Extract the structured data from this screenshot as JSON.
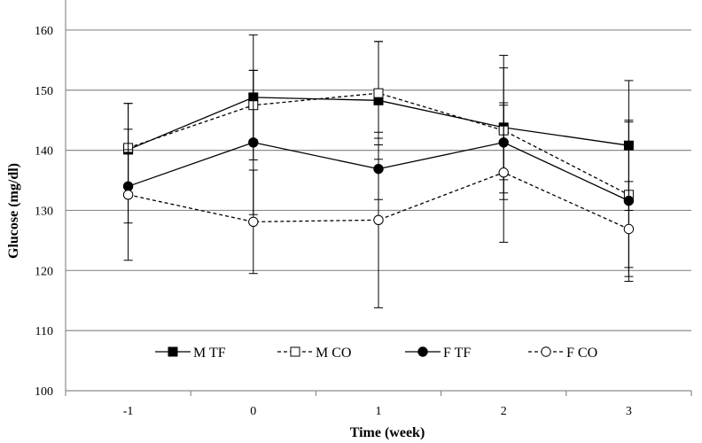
{
  "chart_data": {
    "type": "line",
    "title": "",
    "xlabel": "Time (week)",
    "ylabel": "Glucose (mg/dl)",
    "x": [
      -1,
      0,
      1,
      2,
      3
    ],
    "x_tick_labels": [
      "-1",
      "0",
      "1",
      "2",
      "3"
    ],
    "ylim": [
      100,
      165
    ],
    "y_ticks": [
      100,
      110,
      120,
      130,
      140,
      150,
      160
    ],
    "grid": "horizontal",
    "legend_position": "bottom",
    "series": [
      {
        "name": "M TF",
        "marker": "square-filled",
        "line": "solid",
        "color": "#000000",
        "values": [
          140.1,
          148.8,
          148.3,
          143.8,
          140.8
        ],
        "error": [
          7.7,
          10.4,
          9.8,
          12.0,
          10.8
        ]
      },
      {
        "name": "M CO",
        "marker": "square-open",
        "line": "dashed",
        "color": "#000000",
        "values": [
          140.4,
          147.5,
          149.5,
          143.3,
          132.6
        ],
        "error": [
          7.4,
          5.8,
          8.6,
          10.4,
          12.1
        ]
      },
      {
        "name": "F TF",
        "marker": "circle-filled",
        "line": "solid",
        "color": "#000000",
        "values": [
          134.0,
          141.3,
          136.9,
          141.3,
          131.6
        ],
        "error": [
          6.1,
          12.0,
          5.1,
          6.2,
          13.4
        ]
      },
      {
        "name": "F CO",
        "marker": "circle-open",
        "line": "dashed",
        "color": "#000000",
        "values": [
          132.6,
          128.1,
          128.4,
          136.3,
          126.9
        ],
        "error": [
          10.9,
          8.6,
          14.6,
          11.6,
          7.9
        ]
      }
    ]
  }
}
